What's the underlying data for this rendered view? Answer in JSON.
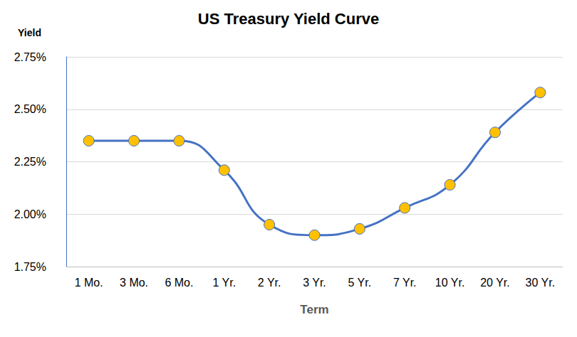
{
  "chart_data": {
    "type": "line",
    "title": "US Treasury Yield Curve",
    "ylabel": "Yield",
    "xlabel": "Term",
    "categories": [
      "1 Mo.",
      "3 Mo.",
      "6 Mo.",
      "1 Yr.",
      "2 Yr.",
      "3 Yr.",
      "5 Yr.",
      "7 Yr.",
      "10 Yr.",
      "20 Yr.",
      "30 Yr."
    ],
    "values": [
      2.35,
      2.35,
      2.35,
      2.21,
      1.95,
      1.9,
      1.93,
      2.03,
      2.14,
      2.39,
      2.58
    ],
    "color": "#4472c4",
    "marker": "circle",
    "line_style": "smooth",
    "ylim": [
      1.75,
      2.75
    ],
    "yticks": [
      {
        "value": 1.75,
        "label": "1.75%"
      },
      {
        "value": 2.0,
        "label": "2.00%"
      },
      {
        "value": 2.25,
        "label": "2.25%"
      },
      {
        "value": 2.5,
        "label": "2.50%"
      },
      {
        "value": 2.75,
        "label": "2.75%"
      }
    ],
    "grid": true
  }
}
